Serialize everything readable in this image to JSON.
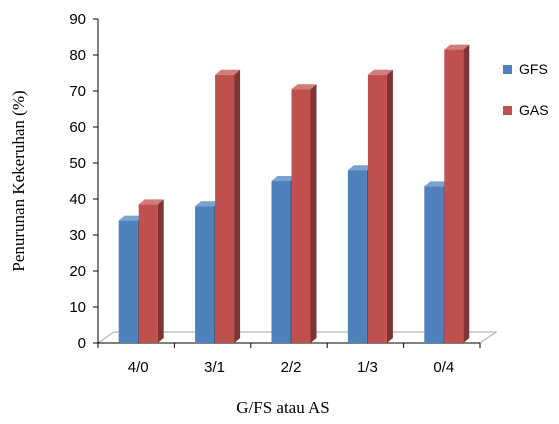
{
  "chart_data": {
    "type": "bar",
    "title": "",
    "xlabel": "G/FS atau AS",
    "ylabel": "Penurunan Kekeruhan (%)",
    "ylim": [
      0,
      90
    ],
    "yticks": [
      0,
      10,
      20,
      30,
      40,
      50,
      60,
      70,
      80,
      90
    ],
    "categories": [
      "4/0",
      "3/1",
      "2/2",
      "1/3",
      "0/4"
    ],
    "series": [
      {
        "name": "GFS",
        "color": "#4f81bd",
        "values": [
          34,
          38,
          45,
          48,
          43.5
        ]
      },
      {
        "name": "GAS",
        "color": "#c0504d",
        "values": [
          38.5,
          74.5,
          70.5,
          74.5,
          81.5
        ]
      }
    ],
    "legend_position": "right",
    "grid": false,
    "style": "3d-column"
  }
}
